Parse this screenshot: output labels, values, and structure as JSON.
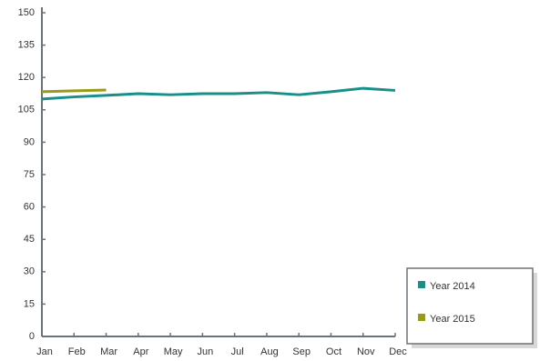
{
  "chart_data": {
    "type": "line",
    "categories": [
      "Jan",
      "Feb",
      "Mar",
      "Apr",
      "May",
      "Jun",
      "Jul",
      "Aug",
      "Sep",
      "Oct",
      "Nov",
      "Dec"
    ],
    "series": [
      {
        "name": "Year 2014",
        "color": "#1a8f8a",
        "values": [
          110,
          111,
          111.7,
          112.5,
          112,
          112.5,
          112.5,
          113,
          112,
          113.4,
          115,
          114
        ]
      },
      {
        "name": "Year 2015",
        "color": "#9a9a1a",
        "values": [
          113.4,
          113.8,
          114.2,
          null,
          null,
          null,
          null,
          null,
          null,
          null,
          null,
          null
        ]
      }
    ],
    "ylim": [
      0,
      150
    ],
    "yticks": [
      0,
      15,
      30,
      45,
      60,
      75,
      90,
      105,
      120,
      135,
      150
    ],
    "grid": false,
    "legend": "bottom-right"
  }
}
